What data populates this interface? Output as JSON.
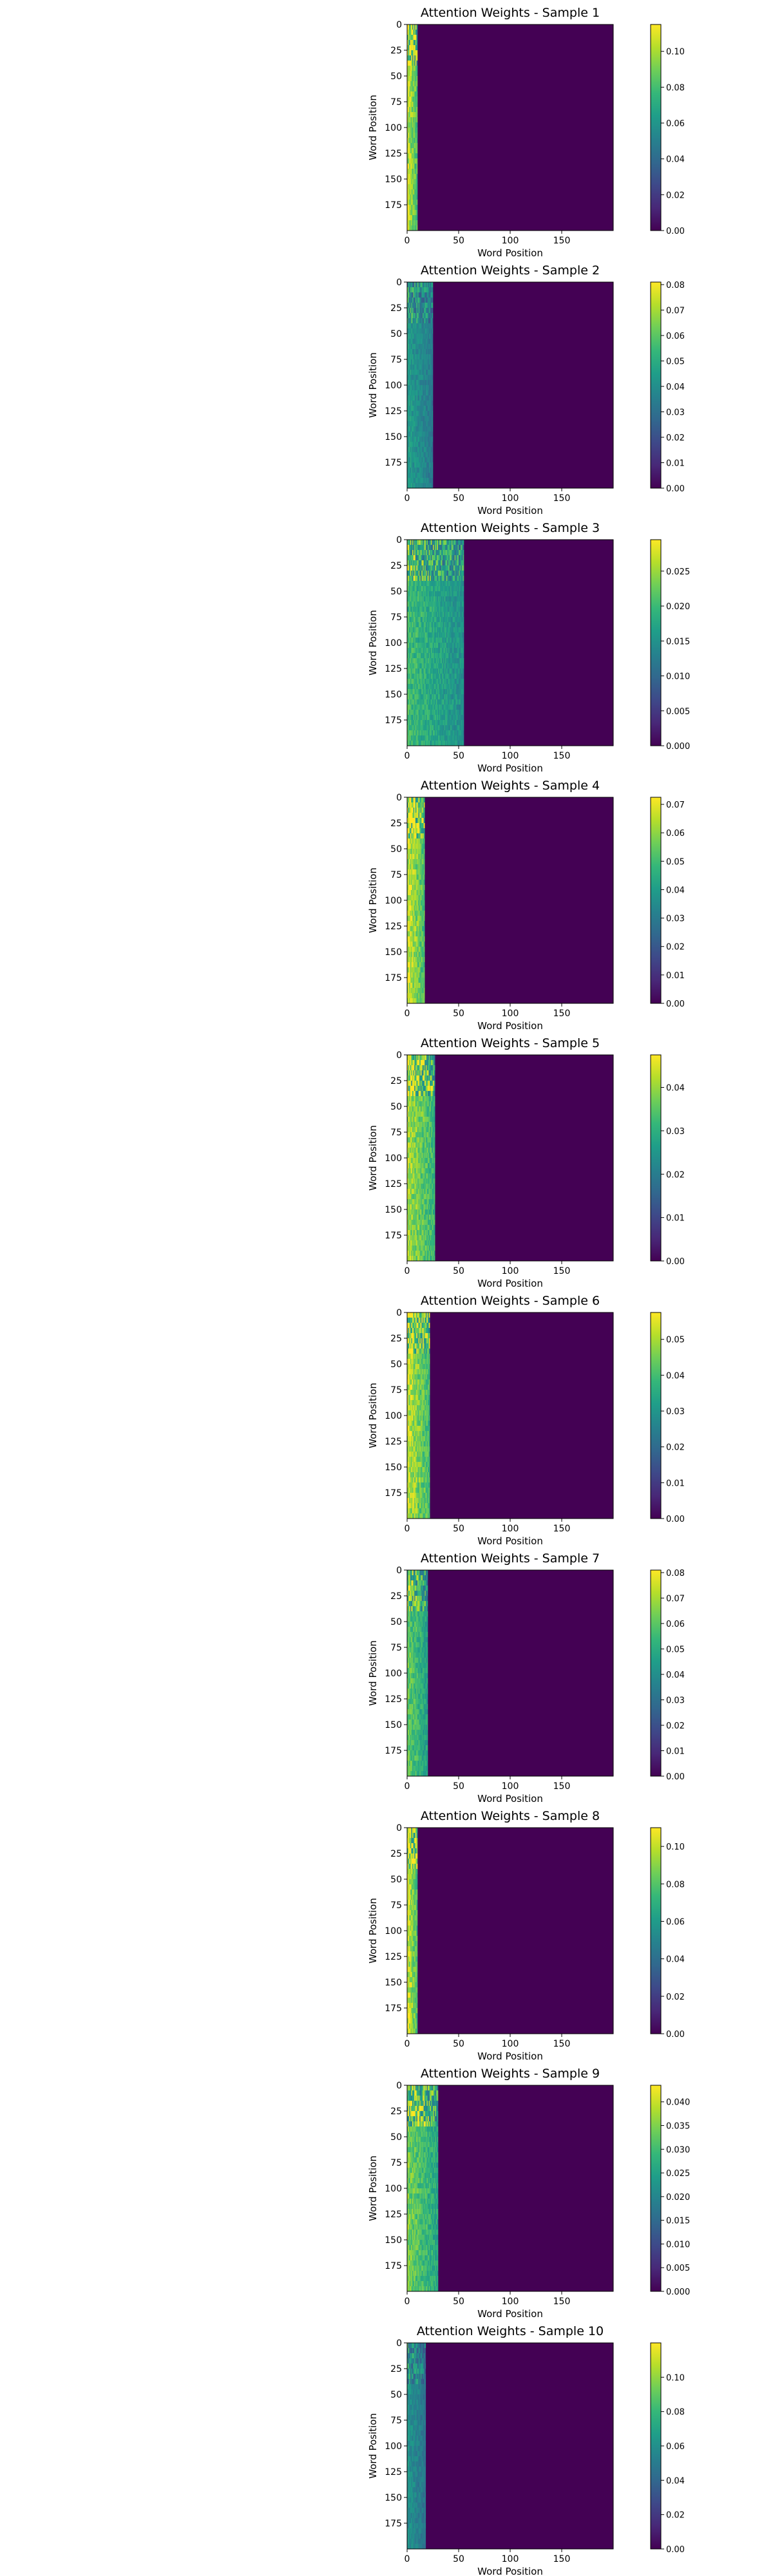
{
  "colors": {
    "viridis": [
      "#440154",
      "#482878",
      "#3e4989",
      "#31688e",
      "#26828e",
      "#1f9e89",
      "#35b779",
      "#6ece58",
      "#b5de2b",
      "#fde725"
    ],
    "background": "#440154"
  },
  "chart_data": [
    {
      "type": "heatmap",
      "title": "Attention Weights - Sample 1",
      "xlabel": "Word Position",
      "ylabel": "Word Position",
      "grid_size": 200,
      "xlim": [
        0,
        200
      ],
      "ylim": [
        200,
        0
      ],
      "y_axis_inverted": true,
      "x_ticks": [
        "0",
        "50",
        "100",
        "150"
      ],
      "y_ticks": [
        "0",
        "25",
        "50",
        "75",
        "100",
        "125",
        "150",
        "175"
      ],
      "colorbar": {
        "min": 0.0,
        "max": 0.115,
        "ticks": [
          "0.00",
          "0.02",
          "0.04",
          "0.06",
          "0.08",
          "0.10"
        ]
      },
      "attended_columns": 10,
      "column_weight": 0.095
    },
    {
      "type": "heatmap",
      "title": "Attention Weights - Sample 2",
      "xlabel": "Word Position",
      "ylabel": "Word Position",
      "grid_size": 200,
      "xlim": [
        0,
        200
      ],
      "ylim": [
        200,
        0
      ],
      "y_axis_inverted": true,
      "x_ticks": [
        "0",
        "50",
        "100",
        "150"
      ],
      "y_ticks": [
        "0",
        "25",
        "50",
        "75",
        "100",
        "125",
        "150",
        "175"
      ],
      "colorbar": {
        "min": 0.0,
        "max": 0.081,
        "ticks": [
          "0.00",
          "0.01",
          "0.02",
          "0.03",
          "0.04",
          "0.05",
          "0.06",
          "0.07",
          "0.08"
        ]
      },
      "attended_columns": 25,
      "column_weight": 0.04
    },
    {
      "type": "heatmap",
      "title": "Attention Weights - Sample 3",
      "xlabel": "Word Position",
      "ylabel": "Word Position",
      "grid_size": 200,
      "xlim": [
        0,
        200
      ],
      "ylim": [
        200,
        0
      ],
      "y_axis_inverted": true,
      "x_ticks": [
        "0",
        "50",
        "100",
        "150"
      ],
      "y_ticks": [
        "0",
        "25",
        "50",
        "75",
        "100",
        "125",
        "150",
        "175"
      ],
      "colorbar": {
        "min": 0.0,
        "max": 0.0295,
        "ticks": [
          "0.000",
          "0.005",
          "0.010",
          "0.015",
          "0.020",
          "0.025"
        ]
      },
      "attended_columns": 55,
      "column_weight": 0.018
    },
    {
      "type": "heatmap",
      "title": "Attention Weights - Sample 4",
      "xlabel": "Word Position",
      "ylabel": "Word Position",
      "grid_size": 200,
      "xlim": [
        0,
        200
      ],
      "ylim": [
        200,
        0
      ],
      "y_axis_inverted": true,
      "x_ticks": [
        "0",
        "50",
        "100",
        "150"
      ],
      "y_ticks": [
        "0",
        "25",
        "50",
        "75",
        "100",
        "125",
        "150",
        "175"
      ],
      "colorbar": {
        "min": 0.0,
        "max": 0.0725,
        "ticks": [
          "0.00",
          "0.01",
          "0.02",
          "0.03",
          "0.04",
          "0.05",
          "0.06",
          "0.07"
        ]
      },
      "attended_columns": 17,
      "column_weight": 0.06
    },
    {
      "type": "heatmap",
      "title": "Attention Weights - Sample 5",
      "xlabel": "Word Position",
      "ylabel": "Word Position",
      "grid_size": 200,
      "xlim": [
        0,
        200
      ],
      "ylim": [
        200,
        0
      ],
      "y_axis_inverted": true,
      "x_ticks": [
        "0",
        "50",
        "100",
        "150"
      ],
      "y_ticks": [
        "0",
        "25",
        "50",
        "75",
        "100",
        "125",
        "150",
        "175"
      ],
      "colorbar": {
        "min": 0.0,
        "max": 0.0475,
        "ticks": [
          "0.00",
          "0.01",
          "0.02",
          "0.03",
          "0.04"
        ]
      },
      "attended_columns": 27,
      "column_weight": 0.037
    },
    {
      "type": "heatmap",
      "title": "Attention Weights - Sample 6",
      "xlabel": "Word Position",
      "ylabel": "Word Position",
      "grid_size": 200,
      "xlim": [
        0,
        200
      ],
      "ylim": [
        200,
        0
      ],
      "y_axis_inverted": true,
      "x_ticks": [
        "0",
        "50",
        "100",
        "150"
      ],
      "y_ticks": [
        "0",
        "25",
        "50",
        "75",
        "100",
        "125",
        "150",
        "175"
      ],
      "colorbar": {
        "min": 0.0,
        "max": 0.0575,
        "ticks": [
          "0.00",
          "0.01",
          "0.02",
          "0.03",
          "0.04",
          "0.05"
        ]
      },
      "attended_columns": 22,
      "column_weight": 0.047
    },
    {
      "type": "heatmap",
      "title": "Attention Weights - Sample 7",
      "xlabel": "Word Position",
      "ylabel": "Word Position",
      "grid_size": 200,
      "xlim": [
        0,
        200
      ],
      "ylim": [
        200,
        0
      ],
      "y_axis_inverted": true,
      "x_ticks": [
        "0",
        "50",
        "100",
        "150"
      ],
      "y_ticks": [
        "0",
        "25",
        "50",
        "75",
        "100",
        "125",
        "150",
        "175"
      ],
      "colorbar": {
        "min": 0.0,
        "max": 0.081,
        "ticks": [
          "0.00",
          "0.01",
          "0.02",
          "0.03",
          "0.04",
          "0.05",
          "0.06",
          "0.07",
          "0.08"
        ]
      },
      "attended_columns": 20,
      "column_weight": 0.055
    },
    {
      "type": "heatmap",
      "title": "Attention Weights - Sample 8",
      "xlabel": "Word Position",
      "ylabel": "Word Position",
      "grid_size": 200,
      "xlim": [
        0,
        200
      ],
      "ylim": [
        200,
        0
      ],
      "y_axis_inverted": true,
      "x_ticks": [
        "0",
        "50",
        "100",
        "150"
      ],
      "y_ticks": [
        "0",
        "25",
        "50",
        "75",
        "100",
        "125",
        "150",
        "175"
      ],
      "colorbar": {
        "min": 0.0,
        "max": 0.11,
        "ticks": [
          "0.00",
          "0.02",
          "0.04",
          "0.06",
          "0.08",
          "0.10"
        ]
      },
      "attended_columns": 10,
      "column_weight": 0.092
    },
    {
      "type": "heatmap",
      "title": "Attention Weights - Sample 9",
      "xlabel": "Word Position",
      "ylabel": "Word Position",
      "grid_size": 200,
      "xlim": [
        0,
        200
      ],
      "ylim": [
        200,
        0
      ],
      "y_axis_inverted": true,
      "x_ticks": [
        "0",
        "50",
        "100",
        "150"
      ],
      "y_ticks": [
        "0",
        "25",
        "50",
        "75",
        "100",
        "125",
        "150",
        "175"
      ],
      "colorbar": {
        "min": 0.0,
        "max": 0.0435,
        "ticks": [
          "0.000",
          "0.005",
          "0.010",
          "0.015",
          "0.020",
          "0.025",
          "0.030",
          "0.035",
          "0.040"
        ]
      },
      "attended_columns": 30,
      "column_weight": 0.031
    },
    {
      "type": "heatmap",
      "title": "Attention Weights - Sample 10",
      "xlabel": "Word Position",
      "ylabel": "Word Position",
      "grid_size": 200,
      "xlim": [
        0,
        200
      ],
      "ylim": [
        200,
        0
      ],
      "y_axis_inverted": true,
      "x_ticks": [
        "0",
        "50",
        "100",
        "150"
      ],
      "y_ticks": [
        "0",
        "25",
        "50",
        "75",
        "100",
        "125",
        "150",
        "175"
      ],
      "colorbar": {
        "min": 0.0,
        "max": 0.12,
        "ticks": [
          "0.00",
          "0.02",
          "0.04",
          "0.06",
          "0.08",
          "0.10"
        ]
      },
      "attended_columns": 18,
      "column_weight": 0.055
    }
  ]
}
